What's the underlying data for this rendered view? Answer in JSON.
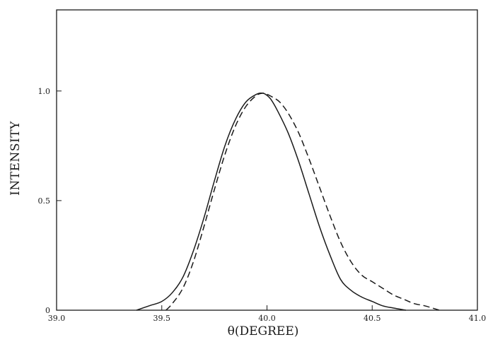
{
  "chart_data": {
    "type": "line",
    "title": "",
    "xlabel": "θ(DEGREE)",
    "ylabel": "INTENSITY",
    "xlim": [
      39.0,
      41.0
    ],
    "ylim": [
      0,
      1.37
    ],
    "x_ticks": [
      39.0,
      39.5,
      40.0,
      40.5,
      41.0
    ],
    "x_tick_labels": [
      "39.0",
      "39.5",
      "40.0",
      "40.5",
      "41.0"
    ],
    "y_ticks": [
      0,
      0.5,
      1.0
    ],
    "y_tick_labels": [
      "0",
      "0.5",
      "1.0"
    ],
    "grid": false,
    "legend": "none",
    "series": [
      {
        "style": "solid",
        "color": "#1a1a1a",
        "x": [
          39.38,
          39.44,
          39.5,
          39.55,
          39.6,
          39.65,
          39.7,
          39.75,
          39.8,
          39.85,
          39.9,
          39.95,
          39.98,
          40.0,
          40.02,
          40.05,
          40.1,
          40.15,
          40.2,
          40.25,
          40.3,
          40.35,
          40.4,
          40.45,
          40.5,
          40.55,
          40.6,
          40.66
        ],
        "y": [
          0.0,
          0.02,
          0.04,
          0.08,
          0.15,
          0.27,
          0.42,
          0.59,
          0.75,
          0.87,
          0.95,
          0.985,
          0.99,
          0.98,
          0.96,
          0.91,
          0.81,
          0.68,
          0.53,
          0.38,
          0.25,
          0.14,
          0.09,
          0.06,
          0.04,
          0.02,
          0.01,
          0.0
        ]
      },
      {
        "style": "dashed",
        "color": "#1a1a1a",
        "x": [
          39.52,
          39.55,
          39.6,
          39.65,
          39.7,
          39.75,
          39.8,
          39.85,
          39.9,
          39.95,
          39.98,
          40.0,
          40.03,
          40.06,
          40.1,
          40.15,
          40.2,
          40.25,
          40.3,
          40.35,
          40.4,
          40.45,
          40.5,
          40.55,
          40.6,
          40.65,
          40.7,
          40.75,
          40.82
        ],
        "y": [
          0.0,
          0.03,
          0.1,
          0.22,
          0.38,
          0.55,
          0.71,
          0.84,
          0.93,
          0.98,
          0.99,
          0.985,
          0.97,
          0.95,
          0.9,
          0.81,
          0.69,
          0.56,
          0.43,
          0.31,
          0.22,
          0.16,
          0.13,
          0.1,
          0.07,
          0.05,
          0.03,
          0.02,
          0.0
        ]
      }
    ]
  }
}
